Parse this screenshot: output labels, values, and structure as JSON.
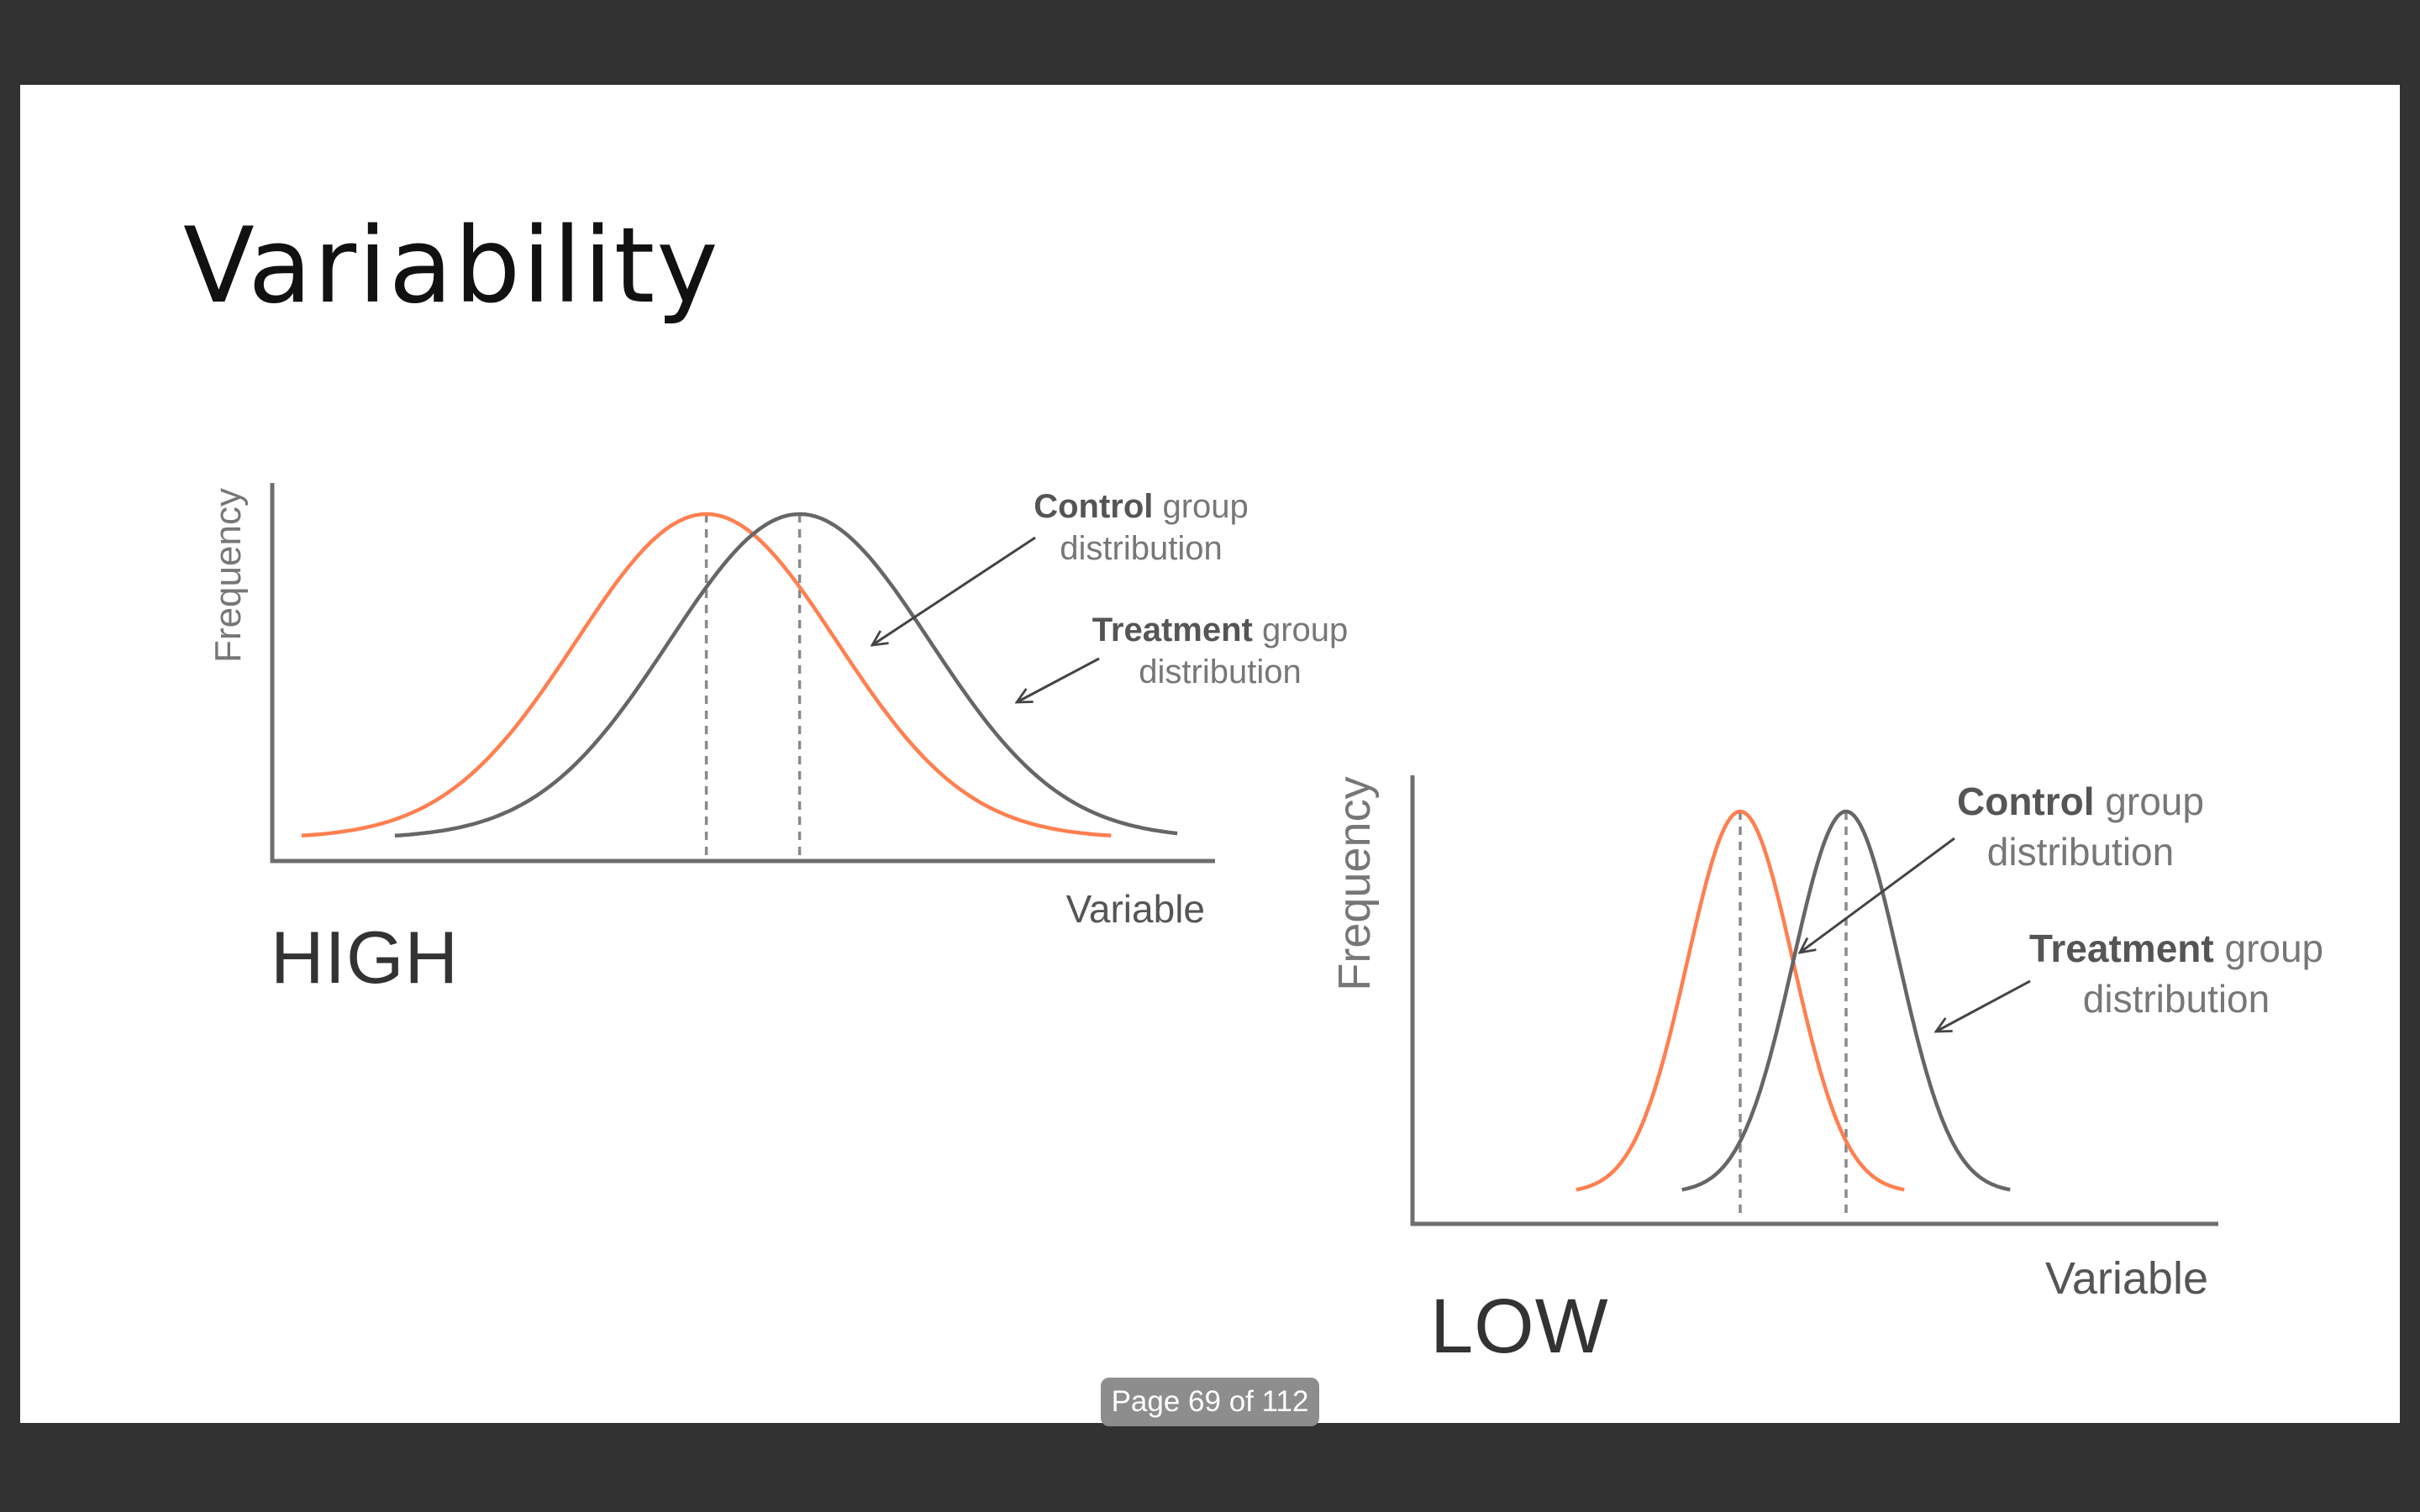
{
  "slide": {
    "title": "Variability",
    "page_indicator": "Page 69 of 112"
  },
  "colors": {
    "control": "#ff7f50",
    "treatment": "#666666",
    "axis": "#6e6e6e",
    "dashed": "#8a8a8a",
    "label": "#555555"
  },
  "chart_data": [
    {
      "type": "line",
      "condition_label": "HIGH",
      "ylabel": "Frequency",
      "xlabel": "Variable",
      "annotations": [
        {
          "bold": "Control",
          "rest": " group",
          "line2": "distribution"
        },
        {
          "bold": "Treatment",
          "rest": " group",
          "line2": "distribution"
        }
      ],
      "series": [
        {
          "color_key": "control",
          "mean": 0.46,
          "sd": 0.14
        },
        {
          "color_key": "treatment",
          "mean": 0.56,
          "sd": 0.14
        }
      ]
    },
    {
      "type": "line",
      "condition_label": "LOW",
      "ylabel": "Frequency",
      "xlabel": "Variable",
      "annotations": [
        {
          "bold": "Control",
          "rest": " group",
          "line2": "distribution"
        },
        {
          "bold": "Treatment",
          "rest": " group",
          "line2": "distribution"
        }
      ],
      "series": [
        {
          "color_key": "control",
          "mean": 0.39,
          "sd": 0.07
        },
        {
          "color_key": "treatment",
          "mean": 0.53,
          "sd": 0.07
        }
      ]
    }
  ]
}
